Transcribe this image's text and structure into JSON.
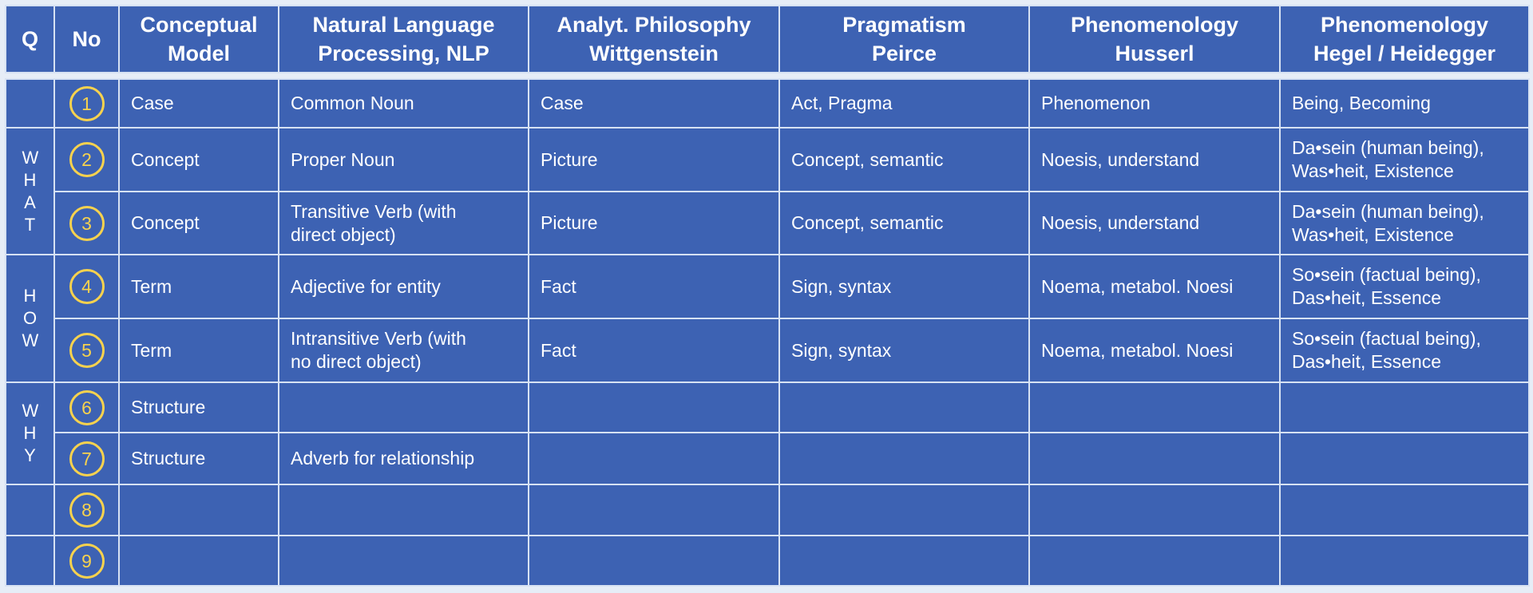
{
  "colors": {
    "cell": "#3d62b3",
    "border": "#d7e2f3",
    "circle": "#f7d24e",
    "background": "#e6edf7"
  },
  "headers": [
    [
      "Q"
    ],
    [
      "No"
    ],
    [
      "Conceptual",
      "Model"
    ],
    [
      "Natural Language",
      "Processing, NLP"
    ],
    [
      "Analyt. Philosophy",
      "Wittgenstein"
    ],
    [
      "Pragmatism",
      "Peirce"
    ],
    [
      "Phenomenology",
      "Husserl"
    ],
    [
      "Phenomenology",
      "Hegel / Heidegger"
    ]
  ],
  "q_groups": [
    "",
    "WHAT",
    "HOW",
    "WHY",
    "",
    ""
  ],
  "rows": [
    {
      "no": "1",
      "cells": [
        [
          "Case"
        ],
        [
          "Common Noun"
        ],
        [
          "Case"
        ],
        [
          "Act, Pragma"
        ],
        [
          "Phenomenon"
        ],
        [
          "Being, Becoming"
        ]
      ]
    },
    {
      "no": "2",
      "cells": [
        [
          "Concept"
        ],
        [
          "Proper Noun"
        ],
        [
          "Picture"
        ],
        [
          "Concept, semantic"
        ],
        [
          "Noesis, understand"
        ],
        [
          "Da•sein (human being),",
          "Was•heit, Existence"
        ]
      ]
    },
    {
      "no": "3",
      "cells": [
        [
          "Concept"
        ],
        [
          "Transitive Verb (with",
          "direct object)"
        ],
        [
          "Picture"
        ],
        [
          "Concept, semantic"
        ],
        [
          "Noesis, understand"
        ],
        [
          "Da•sein (human being),",
          "Was•heit, Existence"
        ]
      ]
    },
    {
      "no": "4",
      "cells": [
        [
          "Term"
        ],
        [
          "Adjective for entity"
        ],
        [
          "Fact"
        ],
        [
          "Sign, syntax"
        ],
        [
          "Noema, metabol. Noesi"
        ],
        [
          "So•sein (factual being),",
          "Das•heit, Essence"
        ]
      ]
    },
    {
      "no": "5",
      "cells": [
        [
          "Term"
        ],
        [
          "Intransitive Verb (with",
          "no direct object)"
        ],
        [
          "Fact"
        ],
        [
          "Sign, syntax"
        ],
        [
          "Noema, metabol. Noesi"
        ],
        [
          "So•sein (factual being),",
          "Das•heit, Essence"
        ]
      ]
    },
    {
      "no": "6",
      "cells": [
        [
          "Structure"
        ],
        [],
        [],
        [],
        [],
        []
      ]
    },
    {
      "no": "7",
      "cells": [
        [
          "Structure"
        ],
        [
          "Adverb for relationship"
        ],
        [],
        [],
        [],
        []
      ]
    },
    {
      "no": "8",
      "cells": [
        [],
        [],
        [],
        [],
        [],
        []
      ]
    },
    {
      "no": "9",
      "cells": [
        [],
        [],
        [],
        [],
        [],
        []
      ]
    }
  ]
}
